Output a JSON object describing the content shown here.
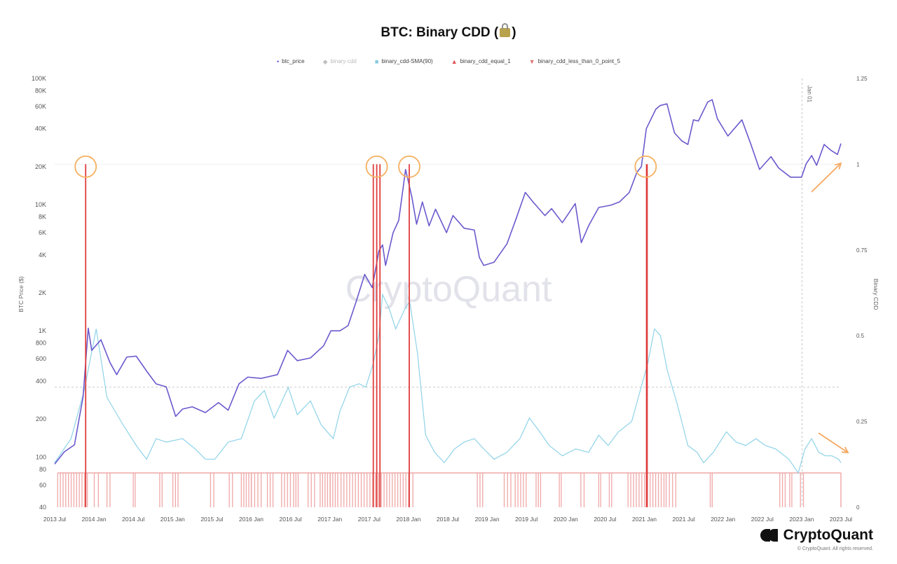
{
  "title": "BTC: Binary CDD",
  "title_paren_open": "(",
  "title_paren_close": ")",
  "legend": [
    {
      "label": "btc_price",
      "symbol": "•",
      "color": "#6a5acd",
      "faded": false
    },
    {
      "label": "binary-cdd",
      "symbol": "◆",
      "color": "#c0c0c0",
      "faded": true
    },
    {
      "label": "binary_cdd-SMA(90)",
      "symbol": "■",
      "color": "#7fc8e0",
      "faded": false
    },
    {
      "label": "binary_cdd_equal_1",
      "symbol": "▲",
      "color": "#e05050",
      "faded": false
    },
    {
      "label": "binary_cdd_less_than_0_point_5",
      "symbol": "▼",
      "color": "#e07070",
      "faded": false
    }
  ],
  "brand": {
    "name": "CryptoQuant",
    "copyright": "© CryptoQuant. All rights reserved."
  },
  "watermark": "CryptoQuant",
  "colors": {
    "price": "#6a5acd",
    "sma": "#8fd3e8",
    "equal1": "#e03c3c",
    "less05": "#f0a8a8",
    "circle": "#f5b060",
    "arrow": "#f5a860"
  },
  "chart_data": {
    "type": "line",
    "y_left_label": "BTC Price ($)",
    "y_right_label": "Binary CDD",
    "y_left_scale": "log",
    "y_left_range": [
      40,
      100000
    ],
    "y_left_ticks": [
      "100K",
      "80K",
      "60K",
      "40K",
      "20K",
      "10K",
      "8K",
      "6K",
      "4K",
      "2K",
      "1K",
      "800",
      "600",
      "400",
      "200",
      "100",
      "80",
      "60",
      "40"
    ],
    "y_left_tick_values": [
      100000,
      80000,
      60000,
      40000,
      20000,
      10000,
      8000,
      6000,
      4000,
      2000,
      1000,
      800,
      600,
      400,
      200,
      100,
      80,
      60,
      40
    ],
    "y_right_range": [
      0,
      1.25
    ],
    "y_right_ticks": [
      "1.25",
      "1",
      "0.75",
      "0.5",
      "0.25",
      "0"
    ],
    "y_right_tick_values": [
      1.25,
      1,
      0.75,
      0.5,
      0.25,
      0
    ],
    "x_range": [
      "2013-07-01",
      "2023-07-01"
    ],
    "x_ticks": [
      "2013 Jul",
      "2014 Jan",
      "2014 Jul",
      "2015 Jan",
      "2015 Jul",
      "2016 Jan",
      "2016 Jul",
      "2017 Jan",
      "2017 Jul",
      "2018 Jan",
      "2018 Jul",
      "2019 Jan",
      "2019 Jul",
      "2020 Jan",
      "2020 Jul",
      "2021 Jan",
      "2021 Jul",
      "2022 Jan",
      "2022 Jul",
      "2023 Jan",
      "2023 Jul"
    ],
    "vertical_marker": {
      "label": "Jan 01",
      "date": "2023-01-01"
    },
    "grid": false,
    "legend_position": "top",
    "series": [
      {
        "name": "btc_price",
        "axis": "left",
        "x": [
          "2013-07-01",
          "2013-08-15",
          "2013-10-01",
          "2013-11-10",
          "2013-12-04",
          "2013-12-20",
          "2014-02-01",
          "2014-03-15",
          "2014-04-15",
          "2014-06-01",
          "2014-07-15",
          "2014-09-01",
          "2014-10-15",
          "2014-12-01",
          "2015-01-14",
          "2015-02-15",
          "2015-04-01",
          "2015-06-01",
          "2015-08-01",
          "2015-09-15",
          "2015-11-04",
          "2015-12-15",
          "2016-02-15",
          "2016-05-01",
          "2016-06-17",
          "2016-08-01",
          "2016-10-01",
          "2016-12-01",
          "2017-01-04",
          "2017-02-15",
          "2017-03-25",
          "2017-05-01",
          "2017-06-10",
          "2017-07-15",
          "2017-08-15",
          "2017-09-01",
          "2017-09-15",
          "2017-10-20",
          "2017-11-15",
          "2017-12-17",
          "2018-01-15",
          "2018-02-06",
          "2018-03-05",
          "2018-04-05",
          "2018-05-05",
          "2018-06-25",
          "2018-07-25",
          "2018-09-15",
          "2018-11-01",
          "2018-11-25",
          "2018-12-15",
          "2019-02-01",
          "2019-04-02",
          "2019-05-15",
          "2019-06-26",
          "2019-08-01",
          "2019-09-25",
          "2019-10-26",
          "2019-12-15",
          "2020-02-13",
          "2020-03-12",
          "2020-04-15",
          "2020-06-01",
          "2020-07-27",
          "2020-09-05",
          "2020-10-21",
          "2020-11-25",
          "2020-12-16",
          "2021-01-08",
          "2021-02-21",
          "2021-03-13",
          "2021-04-14",
          "2021-05-19",
          "2021-06-22",
          "2021-07-20",
          "2021-08-15",
          "2021-09-07",
          "2021-10-20",
          "2021-11-10",
          "2021-12-04",
          "2022-01-22",
          "2022-03-28",
          "2022-05-09",
          "2022-06-18",
          "2022-08-10",
          "2022-09-15",
          "2022-11-09",
          "2022-12-30",
          "2023-01-20",
          "2023-02-15",
          "2023-03-10",
          "2023-04-14",
          "2023-05-15",
          "2023-06-15",
          "2023-07-01"
        ],
        "y": [
          88,
          110,
          125,
          300,
          1050,
          700,
          850,
          560,
          450,
          620,
          630,
          480,
          380,
          360,
          210,
          240,
          250,
          225,
          270,
          235,
          380,
          430,
          420,
          450,
          700,
          580,
          610,
          760,
          1000,
          1000,
          1100,
          1700,
          2800,
          2200,
          4300,
          4800,
          3300,
          6000,
          7500,
          19000,
          11500,
          7000,
          10500,
          6800,
          9200,
          6000,
          8200,
          6500,
          6300,
          3800,
          3300,
          3500,
          4900,
          7800,
          12500,
          10500,
          8200,
          9300,
          7200,
          10200,
          5000,
          6800,
          9500,
          9900,
          10500,
          12500,
          18000,
          20000,
          40000,
          57000,
          61000,
          63000,
          37000,
          32000,
          30000,
          47000,
          46000,
          65000,
          68000,
          48000,
          35000,
          47000,
          30000,
          19000,
          24000,
          19500,
          16500,
          16500,
          21000,
          24500,
          20500,
          30000,
          27000,
          25000,
          30500
        ]
      },
      {
        "name": "binary_cdd-SMA(90)",
        "axis": "right",
        "x": [
          "2013-07-01",
          "2013-09-15",
          "2013-11-15",
          "2014-01-10",
          "2014-03-01",
          "2014-05-15",
          "2014-07-15",
          "2014-09-01",
          "2014-10-15",
          "2014-12-01",
          "2015-02-15",
          "2015-04-15",
          "2015-06-01",
          "2015-07-15",
          "2015-09-15",
          "2015-11-15",
          "2016-01-15",
          "2016-03-01",
          "2016-04-15",
          "2016-05-15",
          "2016-06-20",
          "2016-08-01",
          "2016-10-01",
          "2016-11-20",
          "2017-01-15",
          "2017-02-15",
          "2017-04-01",
          "2017-05-15",
          "2017-06-15",
          "2017-07-20",
          "2017-08-15",
          "2017-09-01",
          "2017-10-01",
          "2017-11-01",
          "2017-12-15",
          "2018-01-05",
          "2018-02-10",
          "2018-03-20",
          "2018-05-01",
          "2018-06-15",
          "2018-08-01",
          "2018-09-15",
          "2018-11-01",
          "2018-12-15",
          "2019-02-01",
          "2019-04-01",
          "2019-06-01",
          "2019-07-15",
          "2019-09-01",
          "2019-10-15",
          "2019-12-15",
          "2020-02-15",
          "2020-04-15",
          "2020-06-01",
          "2020-07-15",
          "2020-09-01",
          "2020-11-01",
          "2020-12-15",
          "2021-01-15",
          "2021-02-15",
          "2021-03-15",
          "2021-04-15",
          "2021-06-01",
          "2021-07-20",
          "2021-09-01",
          "2021-10-01",
          "2021-11-15",
          "2022-01-15",
          "2022-03-01",
          "2022-04-15",
          "2022-06-01",
          "2022-07-15",
          "2022-09-01",
          "2022-11-01",
          "2022-12-15",
          "2023-01-15",
          "2023-02-15",
          "2023-03-20",
          "2023-04-20",
          "2023-05-20",
          "2023-06-20",
          "2023-07-01"
        ],
        "y": [
          0.13,
          0.2,
          0.34,
          0.52,
          0.32,
          0.24,
          0.18,
          0.14,
          0.2,
          0.19,
          0.2,
          0.17,
          0.14,
          0.14,
          0.19,
          0.2,
          0.31,
          0.34,
          0.26,
          0.3,
          0.35,
          0.27,
          0.31,
          0.24,
          0.2,
          0.28,
          0.35,
          0.36,
          0.35,
          0.42,
          0.5,
          0.62,
          0.58,
          0.52,
          0.58,
          0.6,
          0.45,
          0.21,
          0.16,
          0.13,
          0.17,
          0.19,
          0.2,
          0.17,
          0.14,
          0.16,
          0.2,
          0.26,
          0.22,
          0.18,
          0.15,
          0.17,
          0.16,
          0.21,
          0.18,
          0.22,
          0.25,
          0.35,
          0.42,
          0.52,
          0.5,
          0.4,
          0.3,
          0.18,
          0.16,
          0.13,
          0.16,
          0.22,
          0.19,
          0.18,
          0.2,
          0.18,
          0.17,
          0.14,
          0.1,
          0.17,
          0.2,
          0.16,
          0.15,
          0.15,
          0.14,
          0.13
        ]
      },
      {
        "name": "binary_cdd_equal_1",
        "axis": "right",
        "type": "event",
        "dates": [
          "2013-11-22",
          "2017-07-20",
          "2017-08-05",
          "2017-08-20",
          "2018-01-03",
          "2021-01-09",
          "2021-01-12"
        ],
        "y": 1
      },
      {
        "name": "binary_cdd_less_than_0_point_5",
        "axis": "right",
        "type": "event",
        "y": 0.1,
        "clusters": [
          [
            "2013-07-15",
            "2013-11-30"
          ],
          [
            "2014-01-01",
            "2014-01-20"
          ],
          [
            "2014-03-01",
            "2014-03-15"
          ],
          [
            "2014-07-01",
            "2014-07-10"
          ],
          [
            "2014-11-01",
            "2014-11-12"
          ],
          [
            "2015-01-01",
            "2015-01-25"
          ],
          [
            "2015-06-25",
            "2015-07-10"
          ],
          [
            "2015-09-20",
            "2015-10-05"
          ],
          [
            "2015-11-15",
            "2015-12-31"
          ],
          [
            "2016-01-01",
            "2016-02-15"
          ],
          [
            "2016-03-15",
            "2016-04-10"
          ],
          [
            "2016-05-20",
            "2016-06-30"
          ],
          [
            "2016-07-15",
            "2016-08-05"
          ],
          [
            "2016-09-20",
            "2016-10-20"
          ],
          [
            "2016-11-15",
            "2016-12-31"
          ],
          [
            "2017-01-01",
            "2017-02-05"
          ],
          [
            "2017-02-20",
            "2017-07-31"
          ],
          [
            "2017-08-01",
            "2017-12-31"
          ],
          [
            "2018-01-01",
            "2018-01-20"
          ],
          [
            "2018-11-15",
            "2018-12-10"
          ],
          [
            "2019-03-20",
            "2019-04-20"
          ],
          [
            "2019-05-10",
            "2019-06-30"
          ],
          [
            "2019-08-15",
            "2019-09-05"
          ],
          [
            "2019-12-01",
            "2019-12-10"
          ],
          [
            "2020-03-10",
            "2020-03-25"
          ],
          [
            "2020-06-01",
            "2020-06-10"
          ],
          [
            "2020-07-20",
            "2020-07-31"
          ],
          [
            "2020-10-15",
            "2021-03-31"
          ],
          [
            "2021-04-10",
            "2021-05-25"
          ],
          [
            "2021-11-01",
            "2021-11-10"
          ],
          [
            "2022-09-20",
            "2022-10-15"
          ],
          [
            "2022-11-05",
            "2022-11-15"
          ],
          [
            "2022-12-25",
            "2023-01-08"
          ],
          [
            "2023-07-01",
            "2023-07-01"
          ]
        ]
      }
    ],
    "annotations": [
      {
        "type": "circle",
        "date": "2013-11-22",
        "value": 20000
      },
      {
        "type": "circle",
        "date": "2017-08-05",
        "value": 20000
      },
      {
        "type": "circle",
        "date": "2018-01-03",
        "value": 20000
      },
      {
        "type": "circle",
        "date": "2021-01-05",
        "value": 20000
      },
      {
        "type": "arrow",
        "direction": "up",
        "note": "price rising",
        "date": "2023-05-01"
      },
      {
        "type": "arrow",
        "direction": "down",
        "note": "sma falling",
        "date": "2023-05-01"
      }
    ]
  }
}
